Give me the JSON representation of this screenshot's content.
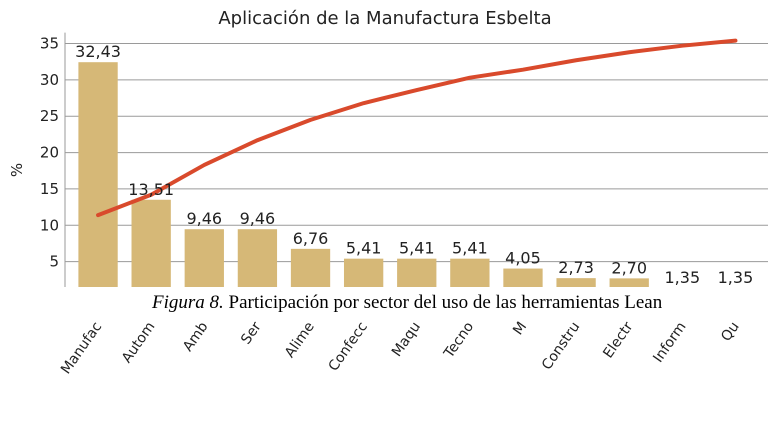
{
  "chart_data": {
    "type": "bar",
    "title": "Aplicación de la Manufactura Esbelta",
    "y_label": "%",
    "categories": [
      "Manufac",
      "Autom",
      "Amb",
      "Ser",
      "Alime",
      "Confecc",
      "Maqu",
      "Tecno",
      "M",
      "Constru",
      "Electr",
      "Inform",
      "Qu"
    ],
    "series": [
      {
        "type": "bar",
        "color": "#d6b877",
        "values": [
          32.43,
          13.51,
          9.46,
          9.46,
          6.76,
          5.41,
          5.41,
          5.41,
          4.05,
          2.73,
          2.7,
          1.35,
          1.35
        ],
        "value_labels": [
          "32,43",
          "13,51",
          "9,46",
          "9,46",
          "6,76",
          "5,41",
          "5,41",
          "5,41",
          "4,05",
          "2,73",
          "2,70",
          "1,35",
          "1,35"
        ]
      },
      {
        "type": "line",
        "color": "#d94a2c",
        "values": [
          11.4,
          14.2,
          18.3,
          21.7,
          24.5,
          26.8,
          28.6,
          30.3,
          31.4,
          32.7,
          33.8,
          34.7,
          35.4
        ]
      }
    ],
    "ylim": [
      0,
      36.5
    ],
    "yticks": [
      5,
      10,
      15,
      20,
      25,
      30,
      35
    ],
    "grid": true
  },
  "caption": {
    "label": "Figura 8.",
    "text": " Participación por sector del uso de las herramientas Lean"
  }
}
